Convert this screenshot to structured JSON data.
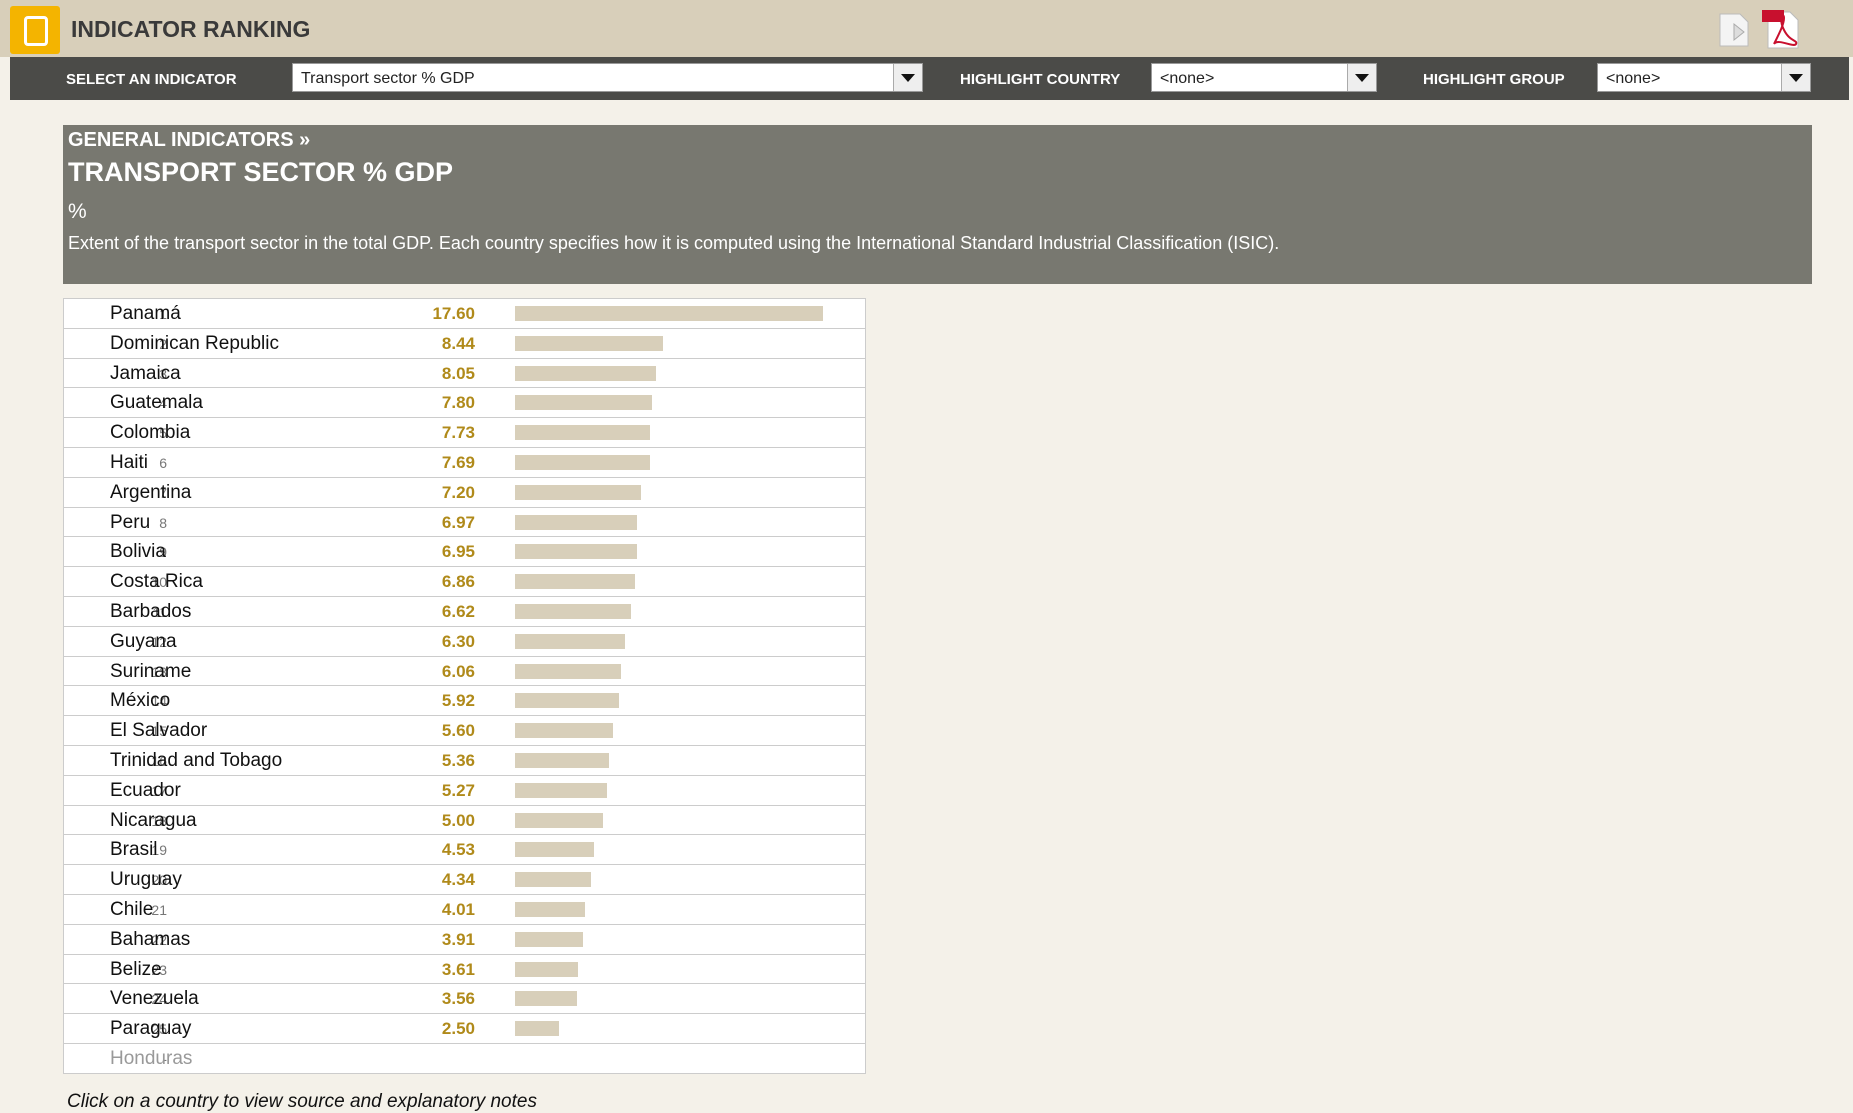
{
  "header": {
    "title": "INDICATOR RANKING"
  },
  "toolbar": {
    "indicator_label": "SELECT AN INDICATOR",
    "indicator_value": "Transport sector  % GDP",
    "country_label": "HIGHLIGHT COUNTRY",
    "country_value": "<none>",
    "group_label": "HIGHLIGHT GROUP",
    "group_value": "<none>"
  },
  "panel": {
    "breadcrumb": "GENERAL INDICATORS »",
    "title": "TRANSPORT SECTOR  % GDP",
    "unit": "%",
    "description": "Extent of the transport sector in the total GDP. Each country specifies how it is computed using the International Standard Industrial Classification (ISIC)."
  },
  "ranking": {
    "rows": [
      {
        "rank": 1,
        "country": "Panamá",
        "value": 17.6,
        "value_label": "17.60"
      },
      {
        "rank": 2,
        "country": "Dominican Republic",
        "value": 8.44,
        "value_label": "8.44"
      },
      {
        "rank": 3,
        "country": "Jamaica",
        "value": 8.05,
        "value_label": "8.05"
      },
      {
        "rank": 4,
        "country": "Guatemala",
        "value": 7.8,
        "value_label": "7.80"
      },
      {
        "rank": 5,
        "country": "Colombia",
        "value": 7.73,
        "value_label": "7.73"
      },
      {
        "rank": 6,
        "country": "Haiti",
        "value": 7.69,
        "value_label": "7.69"
      },
      {
        "rank": 7,
        "country": "Argentina",
        "value": 7.2,
        "value_label": "7.20"
      },
      {
        "rank": 8,
        "country": "Peru",
        "value": 6.97,
        "value_label": "6.97"
      },
      {
        "rank": 9,
        "country": "Bolivia",
        "value": 6.95,
        "value_label": "6.95"
      },
      {
        "rank": 10,
        "country": "Costa Rica",
        "value": 6.86,
        "value_label": "6.86"
      },
      {
        "rank": 11,
        "country": "Barbados",
        "value": 6.62,
        "value_label": "6.62"
      },
      {
        "rank": 12,
        "country": "Guyana",
        "value": 6.3,
        "value_label": "6.30"
      },
      {
        "rank": 13,
        "country": "Suriname",
        "value": 6.06,
        "value_label": "6.06"
      },
      {
        "rank": 14,
        "country": "México",
        "value": 5.92,
        "value_label": "5.92"
      },
      {
        "rank": 15,
        "country": "El Salvador",
        "value": 5.6,
        "value_label": "5.60"
      },
      {
        "rank": 16,
        "country": "Trinidad and Tobago",
        "value": 5.36,
        "value_label": "5.36"
      },
      {
        "rank": 17,
        "country": "Ecuador",
        "value": 5.27,
        "value_label": "5.27"
      },
      {
        "rank": 18,
        "country": "Nicaragua",
        "value": 5.0,
        "value_label": "5.00"
      },
      {
        "rank": 19,
        "country": "Brasil",
        "value": 4.53,
        "value_label": "4.53"
      },
      {
        "rank": 20,
        "country": "Uruguay",
        "value": 4.34,
        "value_label": "4.34"
      },
      {
        "rank": 21,
        "country": "Chile",
        "value": 4.01,
        "value_label": "4.01"
      },
      {
        "rank": 22,
        "country": "Bahamas",
        "value": 3.91,
        "value_label": "3.91"
      },
      {
        "rank": 23,
        "country": "Belize",
        "value": 3.61,
        "value_label": "3.61"
      },
      {
        "rank": 24,
        "country": "Venezuela",
        "value": 3.56,
        "value_label": "3.56"
      },
      {
        "rank": 25,
        "country": "Paraguay",
        "value": 2.5,
        "value_label": "2.50"
      },
      {
        "rank": "-",
        "country": "Honduras",
        "value": null
      }
    ]
  },
  "footer": {
    "note": "Click on a country to view source and explanatory notes"
  }
}
